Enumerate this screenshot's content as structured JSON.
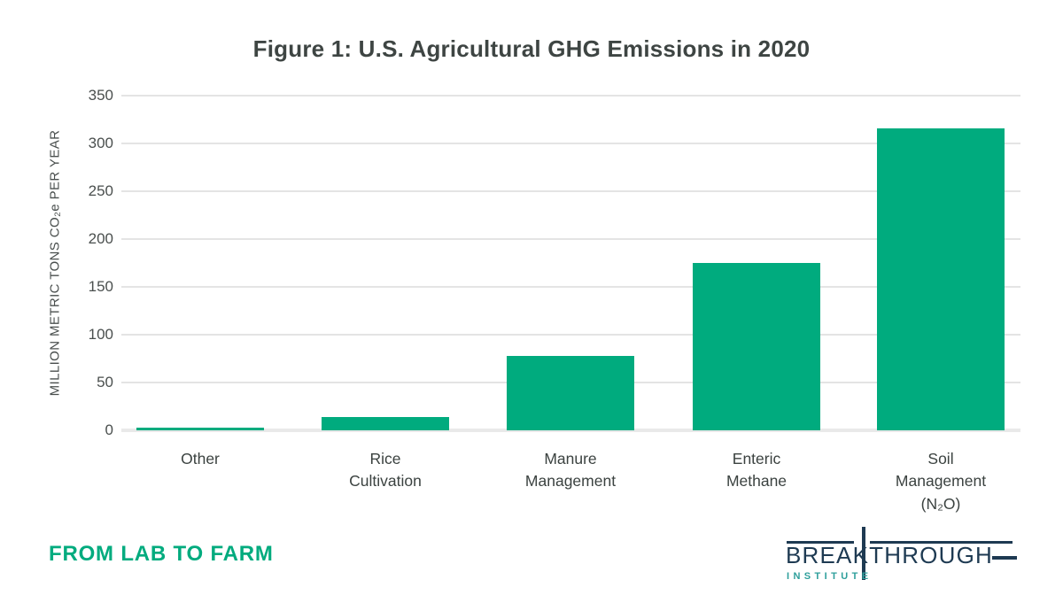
{
  "chart_data": {
    "type": "bar",
    "title": "Figure 1: U.S. Agricultural GHG Emissions in 2020",
    "categories": [
      "Other",
      "Rice\nCultivation",
      "Manure\nManagement",
      "Enteric\nMethane",
      "Soil\nManagement\n(N₂O)"
    ],
    "values": [
      3,
      14,
      78,
      175,
      316
    ],
    "xlabel": "",
    "ylabel": "MILLION METRIC TONS CO₂e PER YEAR",
    "ylim": [
      0,
      350
    ],
    "yticks": [
      0,
      50,
      100,
      150,
      200,
      250,
      300,
      350
    ],
    "grid": true,
    "legend": "none",
    "bar_color": "#00AB7E"
  },
  "footer": {
    "tagline": "FROM LAB TO FARM",
    "logo": {
      "wordmark": "BREAKTHROUGH",
      "subtext": "INSTITUTE"
    }
  },
  "colors": {
    "bar_green": "#00AB7E",
    "title_text": "#3E4543",
    "axis_text": "#4A4F4E",
    "gridline": "#E4E4E4",
    "logo_navy": "#1E3A52",
    "logo_teal": "#2E9F9B",
    "background": "#FFFFFF"
  }
}
